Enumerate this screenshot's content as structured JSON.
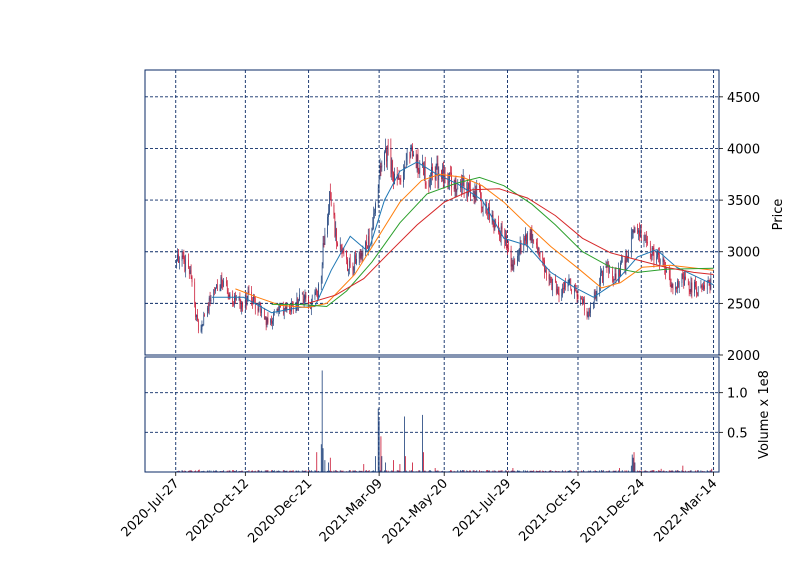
{
  "chart_data": {
    "type": "candlestick",
    "x_tick_labels": [
      "2020-Jul-27",
      "2020-Oct-12",
      "2020-Dec-21",
      "2021-Mar-09",
      "2021-May-20",
      "2021-Jul-29",
      "2021-Oct-15",
      "2021-Dec-24",
      "2022-Mar-14"
    ],
    "x_tick_dates": [
      "2020-07-27",
      "2020-10-12",
      "2020-12-21",
      "2021-03-09",
      "2021-05-20",
      "2021-07-29",
      "2021-10-15",
      "2021-12-24",
      "2022-03-14"
    ],
    "x_range": [
      "2020-06-23",
      "2022-03-20"
    ],
    "price_axis": {
      "label": "Price",
      "range": [
        2000,
        4760
      ],
      "ticks": [
        2000,
        2500,
        3000,
        3500,
        4000,
        4500
      ]
    },
    "volume_axis": {
      "label": "Volume x 1e8",
      "range": [
        0,
        1.45
      ],
      "ticks": [
        0.5,
        1.0
      ]
    },
    "grid": true,
    "grid_color": "#0a2a66",
    "frame_color": "#0a2a66",
    "up_color": "#1c3f7a",
    "down_color": "#c8102e",
    "moving_average_colors": [
      "#1f77b4",
      "#ff7f0e",
      "#2ca02c",
      "#d62728"
    ],
    "close_path": [
      [
        "2020-07-27",
        2950
      ],
      [
        "2020-08-03",
        2930
      ],
      [
        "2020-08-12",
        2780
      ],
      [
        "2020-08-17",
        2450
      ],
      [
        "2020-08-22",
        2250
      ],
      [
        "2020-08-28",
        2400
      ],
      [
        "2020-09-07",
        2620
      ],
      [
        "2020-09-16",
        2700
      ],
      [
        "2020-09-26",
        2560
      ],
      [
        "2020-10-08",
        2480
      ],
      [
        "2020-10-15",
        2580
      ],
      [
        "2020-10-26",
        2470
      ],
      [
        "2020-11-06",
        2310
      ],
      [
        "2020-11-18",
        2430
      ],
      [
        "2020-12-01",
        2440
      ],
      [
        "2020-12-13",
        2560
      ],
      [
        "2020-12-21",
        2470
      ],
      [
        "2020-12-28",
        2580
      ],
      [
        "2021-01-03",
        2650
      ],
      [
        "2021-01-08",
        3250
      ],
      [
        "2021-01-14",
        3550
      ],
      [
        "2021-01-20",
        3150
      ],
      [
        "2021-01-28",
        2950
      ],
      [
        "2021-02-05",
        2850
      ],
      [
        "2021-02-15",
        2950
      ],
      [
        "2021-02-25",
        3100
      ],
      [
        "2021-03-05",
        3400
      ],
      [
        "2021-03-10",
        3750
      ],
      [
        "2021-03-18",
        3950
      ],
      [
        "2021-03-28",
        3650
      ],
      [
        "2021-04-07",
        3850
      ],
      [
        "2021-04-14",
        3950
      ],
      [
        "2021-04-22",
        3820
      ],
      [
        "2021-05-01",
        3720
      ],
      [
        "2021-05-12",
        3780
      ],
      [
        "2021-05-22",
        3720
      ],
      [
        "2021-06-03",
        3650
      ],
      [
        "2021-06-15",
        3620
      ],
      [
        "2021-06-27",
        3560
      ],
      [
        "2021-07-10",
        3350
      ],
      [
        "2021-07-20",
        3200
      ],
      [
        "2021-07-29",
        3050
      ],
      [
        "2021-08-03",
        2880
      ],
      [
        "2021-08-12",
        3050
      ],
      [
        "2021-08-24",
        3150
      ],
      [
        "2021-09-04",
        2900
      ],
      [
        "2021-09-14",
        2720
      ],
      [
        "2021-09-24",
        2600
      ],
      [
        "2021-10-05",
        2700
      ],
      [
        "2021-10-18",
        2560
      ],
      [
        "2021-10-26",
        2380
      ],
      [
        "2021-11-05",
        2650
      ],
      [
        "2021-11-15",
        2850
      ],
      [
        "2021-11-25",
        2750
      ],
      [
        "2021-12-06",
        2900
      ],
      [
        "2021-12-14",
        3150
      ],
      [
        "2021-12-22",
        3200
      ],
      [
        "2021-12-30",
        3050
      ],
      [
        "2022-01-08",
        2950
      ],
      [
        "2022-01-18",
        2880
      ],
      [
        "2022-01-28",
        2650
      ],
      [
        "2022-02-08",
        2750
      ],
      [
        "2022-02-18",
        2650
      ],
      [
        "2022-03-01",
        2620
      ],
      [
        "2022-03-10",
        2700
      ],
      [
        "2022-03-14",
        2750
      ]
    ],
    "moving_averages": [
      {
        "color": "#1f77b4",
        "points": [
          [
            "2020-09-05",
            2560
          ],
          [
            "2020-10-10",
            2560
          ],
          [
            "2020-11-10",
            2410
          ],
          [
            "2020-12-10",
            2460
          ],
          [
            "2020-12-28",
            2470
          ],
          [
            "2021-01-15",
            2820
          ],
          [
            "2021-02-05",
            3150
          ],
          [
            "2021-02-25",
            3000
          ],
          [
            "2021-03-15",
            3500
          ],
          [
            "2021-04-01",
            3780
          ],
          [
            "2021-04-20",
            3870
          ],
          [
            "2021-05-10",
            3760
          ],
          [
            "2021-06-05",
            3650
          ],
          [
            "2021-07-01",
            3500
          ],
          [
            "2021-07-25",
            3130
          ],
          [
            "2021-08-20",
            3060
          ],
          [
            "2021-09-15",
            2800
          ],
          [
            "2021-10-10",
            2660
          ],
          [
            "2021-11-01",
            2560
          ],
          [
            "2021-11-25",
            2700
          ],
          [
            "2021-12-20",
            2950
          ],
          [
            "2022-01-10",
            3020
          ],
          [
            "2022-02-01",
            2850
          ],
          [
            "2022-03-14",
            2680
          ]
        ]
      },
      {
        "color": "#ff7f0e",
        "points": [
          [
            "2020-10-01",
            2640
          ],
          [
            "2020-10-25",
            2560
          ],
          [
            "2020-11-20",
            2480
          ],
          [
            "2020-12-20",
            2460
          ],
          [
            "2021-01-10",
            2500
          ],
          [
            "2021-02-10",
            2780
          ],
          [
            "2021-03-10",
            3170
          ],
          [
            "2021-04-01",
            3480
          ],
          [
            "2021-04-25",
            3690
          ],
          [
            "2021-05-15",
            3750
          ],
          [
            "2021-06-10",
            3720
          ],
          [
            "2021-07-01",
            3640
          ],
          [
            "2021-07-25",
            3480
          ],
          [
            "2021-08-20",
            3260
          ],
          [
            "2021-09-15",
            3050
          ],
          [
            "2021-10-15",
            2840
          ],
          [
            "2021-11-10",
            2650
          ],
          [
            "2021-12-01",
            2700
          ],
          [
            "2021-12-25",
            2850
          ],
          [
            "2022-01-25",
            2870
          ],
          [
            "2022-03-14",
            2820
          ]
        ]
      },
      {
        "color": "#2ca02c",
        "points": [
          [
            "2020-11-10",
            2490
          ],
          [
            "2020-12-10",
            2490
          ],
          [
            "2021-01-10",
            2470
          ],
          [
            "2021-02-01",
            2620
          ],
          [
            "2021-03-01",
            2900
          ],
          [
            "2021-04-01",
            3280
          ],
          [
            "2021-05-01",
            3560
          ],
          [
            "2021-06-01",
            3660
          ],
          [
            "2021-06-28",
            3720
          ],
          [
            "2021-07-25",
            3640
          ],
          [
            "2021-08-25",
            3460
          ],
          [
            "2021-09-20",
            3260
          ],
          [
            "2021-10-20",
            3000
          ],
          [
            "2021-11-20",
            2850
          ],
          [
            "2021-12-20",
            2800
          ],
          [
            "2022-01-20",
            2830
          ],
          [
            "2022-03-14",
            2840
          ]
        ]
      },
      {
        "color": "#d62728",
        "points": [
          [
            "2020-12-20",
            2500
          ],
          [
            "2021-01-20",
            2580
          ],
          [
            "2021-02-20",
            2740
          ],
          [
            "2021-03-20",
            2990
          ],
          [
            "2021-04-20",
            3260
          ],
          [
            "2021-05-20",
            3480
          ],
          [
            "2021-06-20",
            3600
          ],
          [
            "2021-07-20",
            3610
          ],
          [
            "2021-08-20",
            3520
          ],
          [
            "2021-09-20",
            3350
          ],
          [
            "2021-10-20",
            3130
          ],
          [
            "2021-11-20",
            2990
          ],
          [
            "2021-12-20",
            2920
          ],
          [
            "2022-01-20",
            2850
          ],
          [
            "2022-02-20",
            2800
          ],
          [
            "2022-03-14",
            2780
          ]
        ]
      }
    ],
    "volume_baseline": 0.015,
    "volume_spikes": [
      [
        "2020-08-22",
        0.03
      ],
      [
        "2020-10-02",
        0.025
      ],
      [
        "2020-12-30",
        0.25
      ],
      [
        "2021-01-04",
        0.35
      ],
      [
        "2021-01-05",
        1.28
      ],
      [
        "2021-01-06",
        0.3
      ],
      [
        "2021-01-08",
        0.15
      ],
      [
        "2021-01-12",
        0.12
      ],
      [
        "2021-01-14",
        0.18
      ],
      [
        "2021-02-20",
        0.1
      ],
      [
        "2021-03-05",
        0.2
      ],
      [
        "2021-03-08",
        0.8
      ],
      [
        "2021-03-09",
        0.65
      ],
      [
        "2021-03-11",
        0.45
      ],
      [
        "2021-03-12",
        0.2
      ],
      [
        "2021-03-16",
        0.12
      ],
      [
        "2021-03-25",
        0.15
      ],
      [
        "2021-04-01",
        0.1
      ],
      [
        "2021-04-06",
        0.7
      ],
      [
        "2021-04-07",
        0.2
      ],
      [
        "2021-04-15",
        0.12
      ],
      [
        "2021-04-26",
        0.72
      ],
      [
        "2021-04-27",
        0.25
      ],
      [
        "2021-05-10",
        0.05
      ],
      [
        "2021-08-04",
        0.05
      ],
      [
        "2021-11-30",
        0.05
      ],
      [
        "2021-12-13",
        0.08
      ],
      [
        "2021-12-14",
        0.22
      ],
      [
        "2021-12-15",
        0.18
      ],
      [
        "2021-12-16",
        0.25
      ],
      [
        "2021-12-17",
        0.12
      ],
      [
        "2022-01-15",
        0.04
      ],
      [
        "2022-02-08",
        0.08
      ],
      [
        "2022-03-12",
        0.04
      ]
    ]
  }
}
